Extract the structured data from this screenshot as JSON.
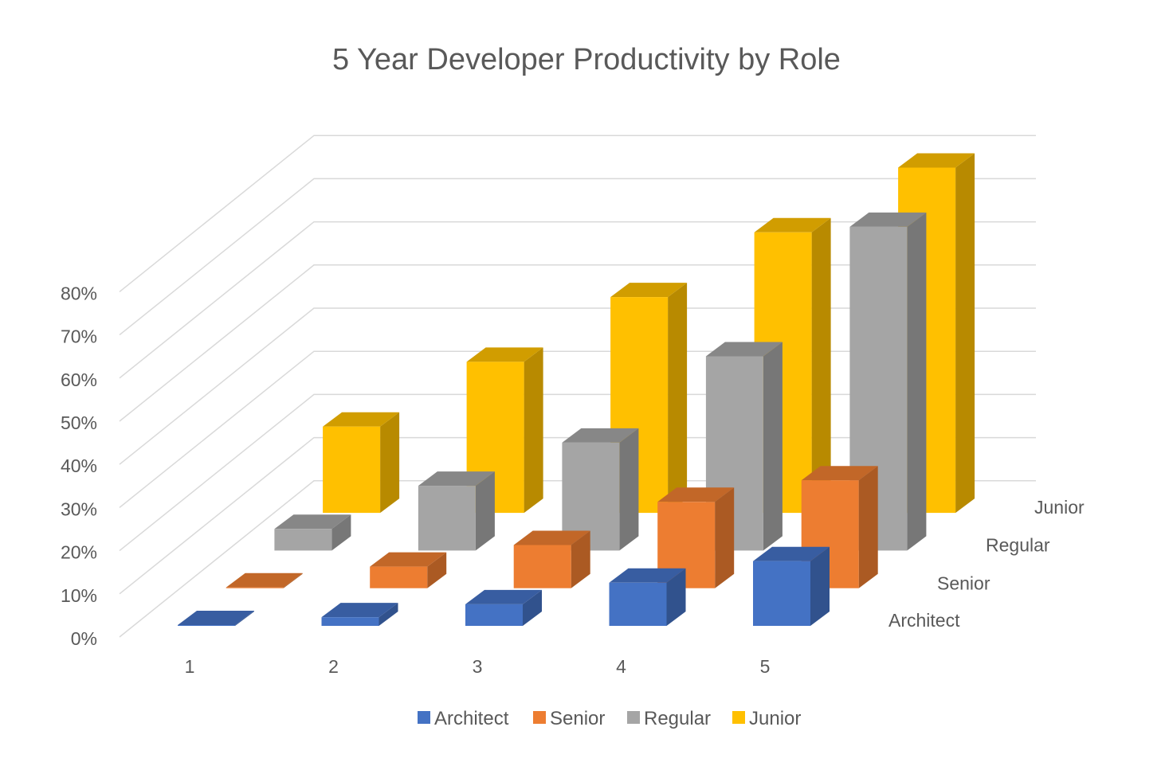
{
  "chart_data": {
    "type": "bar",
    "title": "5 Year Developer Productivity by Role",
    "categories": [
      "1",
      "2",
      "3",
      "4",
      "5"
    ],
    "series": [
      {
        "name": "Architect",
        "values": [
          0,
          2,
          5,
          10,
          15
        ],
        "color": "#4472C4"
      },
      {
        "name": "Senior",
        "values": [
          0,
          5,
          10,
          20,
          25
        ],
        "color": "#ED7D31"
      },
      {
        "name": "Regular",
        "values": [
          5,
          15,
          25,
          45,
          75
        ],
        "color": "#A5A5A5"
      },
      {
        "name": "Junior",
        "values": [
          20,
          35,
          50,
          65,
          80
        ],
        "color": "#FFC000"
      }
    ],
    "y_ticks": [
      "0%",
      "10%",
      "20%",
      "30%",
      "40%",
      "50%",
      "60%",
      "70%",
      "80%"
    ],
    "ylim": [
      0,
      80
    ],
    "grid": true,
    "legend": "bottom",
    "projection": "3d-column"
  }
}
